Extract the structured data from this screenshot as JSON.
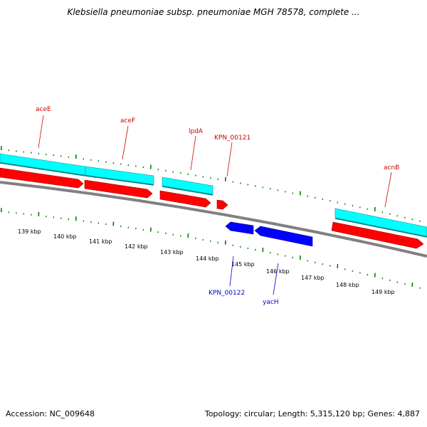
{
  "header": {
    "title": "Klebsiella pneumoniae subsp. pneumoniae MGH 78578, complete ..."
  },
  "footer": {
    "accession": "Accession: NC_009648",
    "summary": "Topology: circular; Length: 5,315,120 bp; Genes: 4,887"
  },
  "colors": {
    "background": "#ffffff",
    "forward_strand": "#ff0000",
    "forward_label": "#cc0000",
    "reverse_strand": "#0000ff",
    "reverse_label": "#0000cc",
    "annotation_track": "#00ffff",
    "backbone": "#808080",
    "tick_marks": "#008000"
  },
  "genes": {
    "forward": [
      {
        "label": "aceE"
      },
      {
        "label": "aceF"
      },
      {
        "label": "lpdA"
      },
      {
        "label": "KPN_00121"
      },
      {
        "label": "acnB"
      }
    ],
    "reverse": [
      {
        "label": "KPN_00122"
      },
      {
        "label": "yacH"
      }
    ]
  },
  "scale": {
    "labels": [
      "139 kbp",
      "140 kbp",
      "141 kbp",
      "142 kbp",
      "143 kbp",
      "144 kbp",
      "145 kbp",
      "146 kbp",
      "147 kbp",
      "148 kbp",
      "149 kbp"
    ]
  }
}
